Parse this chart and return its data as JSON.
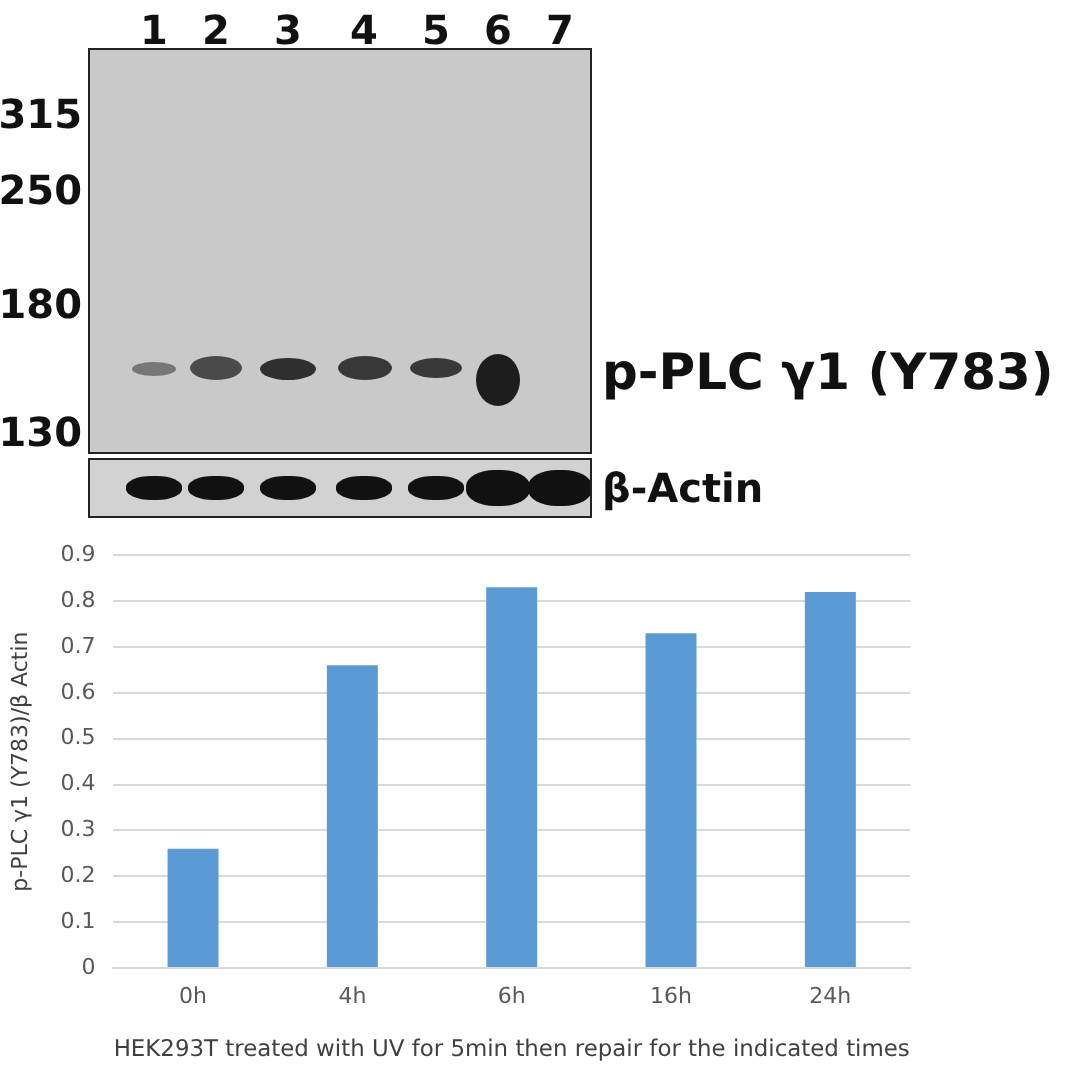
{
  "chart_data": {
    "type": "bar",
    "categories": [
      "0h",
      "4h",
      "6h",
      "16h",
      "24h"
    ],
    "values": [
      0.26,
      0.66,
      0.83,
      0.73,
      0.82
    ],
    "color": "#5b9bd5",
    "ylim": [
      0,
      0.9
    ],
    "yticks": [
      0,
      0.1,
      0.2,
      0.3,
      0.4,
      0.5,
      0.6,
      0.7,
      0.8,
      0.9
    ],
    "ylabel": "p-PLC γ1 (Y783)/β Actin",
    "xlabel": "HEK293T treated with UV for 5min then repair for the indicated times",
    "grid": "y",
    "annotations": [
      "1",
      "2",
      "3",
      "4",
      "5",
      "6",
      "7",
      "315",
      "250",
      "180",
      "130",
      "p-PLC γ1 (Y783)",
      "β-Actin"
    ]
  }
}
